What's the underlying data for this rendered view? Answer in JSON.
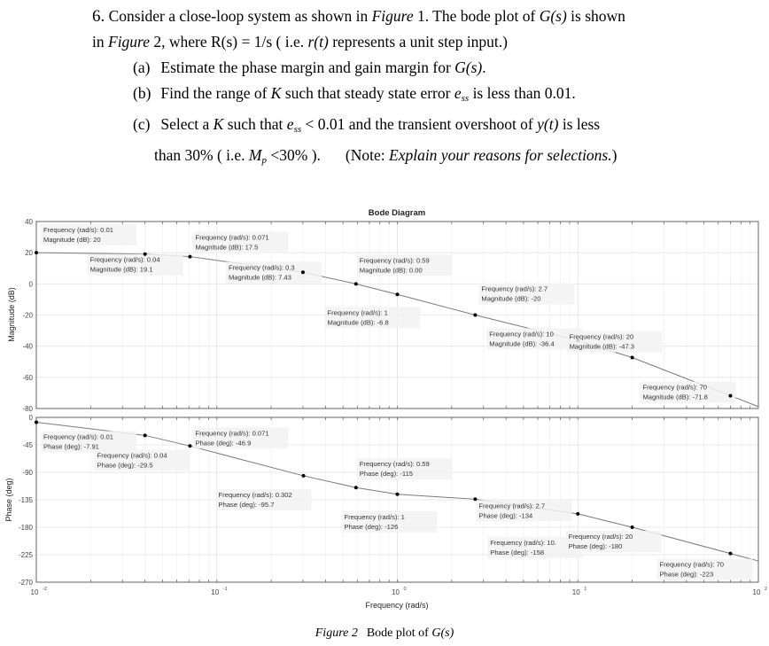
{
  "question": {
    "number": "6.",
    "intro_line1_parts": [
      "Consider a close-loop system as shown in ",
      "Figure",
      " 1. The bode plot of ",
      "G(s)",
      " is shown"
    ],
    "intro_line2_parts": [
      "in ",
      "Figure",
      " 2, where R(s) = 1/s ( i.e. ",
      "r(t)",
      " represents a unit step input.)"
    ],
    "parts": [
      {
        "label": "(a)",
        "text_parts": [
          "Estimate the phase margin and gain margin for ",
          "G(s)",
          "."
        ]
      },
      {
        "label": "(b)",
        "text_parts": [
          "Find the range of ",
          "K",
          " such that steady state error ",
          "e",
          "ss",
          " is less than 0.01."
        ]
      },
      {
        "label": "(c)",
        "text_parts": [
          "Select a ",
          "K",
          " such that ",
          "e",
          "ss",
          " < 0.01 and the transient overshoot of ",
          "y(t)",
          " is less"
        ],
        "cont_parts": [
          "than 30% ( i.e. ",
          "M",
          "p",
          " <30% ).",
          "(Note: ",
          "Explain your reasons for selections.",
          ")"
        ]
      }
    ]
  },
  "caption": {
    "label": "Figure 2",
    "text_parts": [
      "Bode plot of ",
      "G(s)"
    ]
  },
  "chart_data": {
    "type": "line",
    "title": "Bode Diagram",
    "xlabel": "Frequency  (rad/s)",
    "xscale": "log",
    "xlim": [
      0.01,
      100
    ],
    "x_tick_labels": [
      "10^-2",
      "10^-1",
      "10^0",
      "10^1",
      "10^2"
    ],
    "grid": true,
    "colors": {
      "line": "#7a7a7a",
      "marker": "#000000",
      "grid": "#e6e6e6",
      "axis": "#4d4d4d",
      "datatip_bg": "#f2f2f2"
    },
    "subplots": [
      {
        "name": "magnitude",
        "ylabel": "Magnitude (dB)",
        "ylim": [
          -80,
          40
        ],
        "y_ticks": [
          40,
          20,
          0,
          -20,
          -40,
          -60,
          -80
        ],
        "datatips": [
          {
            "freq": 0.01,
            "value": 20,
            "freq_label": "0.01",
            "value_label": "20"
          },
          {
            "freq": 0.04,
            "value": 19.1,
            "freq_label": "0.04",
            "value_label": "19.1"
          },
          {
            "freq": 0.071,
            "value": 17.5,
            "freq_label": "0.071",
            "value_label": "17.5"
          },
          {
            "freq": 0.3,
            "value": 7.43,
            "freq_label": "0.3",
            "value_label": "7.43"
          },
          {
            "freq": 0.59,
            "value": 0.0,
            "freq_label": "0.59",
            "value_label": "0.00"
          },
          {
            "freq": 1,
            "value": -6.8,
            "freq_label": "1",
            "value_label": "-6.8"
          },
          {
            "freq": 2.7,
            "value": -20,
            "freq_label": "2.7",
            "value_label": "-20"
          },
          {
            "freq": 10,
            "value": -36.4,
            "freq_label": "10",
            "value_label": "-36.4"
          },
          {
            "freq": 20,
            "value": -47.3,
            "freq_label": "20",
            "value_label": "-47.3"
          },
          {
            "freq": 70,
            "value": -71.8,
            "freq_label": "70",
            "value_label": "-71.8"
          }
        ],
        "value_prefix": "Magnitude (dB): "
      },
      {
        "name": "phase",
        "ylabel": "Phase (deg)",
        "ylim": [
          -270,
          0
        ],
        "y_ticks": [
          0,
          -45,
          -90,
          -135,
          -180,
          -225,
          -270
        ],
        "datatips": [
          {
            "freq": 0.01,
            "value": -7.91,
            "freq_label": "0.01",
            "value_label": "-7.91"
          },
          {
            "freq": 0.04,
            "value": -29.5,
            "freq_label": "0.04",
            "value_label": "-29.5"
          },
          {
            "freq": 0.071,
            "value": -46.9,
            "freq_label": "0.071",
            "value_label": "-46.9"
          },
          {
            "freq": 0.302,
            "value": -95.7,
            "freq_label": "0.302",
            "value_label": "-95.7"
          },
          {
            "freq": 0.59,
            "value": -115,
            "freq_label": "0.59",
            "value_label": "-115"
          },
          {
            "freq": 1,
            "value": -126,
            "freq_label": "1",
            "value_label": "-126"
          },
          {
            "freq": 2.7,
            "value": -134,
            "freq_label": "2.7",
            "value_label": "-134"
          },
          {
            "freq": 10,
            "value": -158,
            "freq_label": "10.",
            "value_label": "-158"
          },
          {
            "freq": 20,
            "value": -180,
            "freq_label": "20",
            "value_label": "-180"
          },
          {
            "freq": 70,
            "value": -223,
            "freq_label": "70",
            "value_label": "-223"
          }
        ],
        "value_prefix": "Phase (deg): "
      }
    ],
    "freq_prefix": "Frequency (rad/s): "
  }
}
